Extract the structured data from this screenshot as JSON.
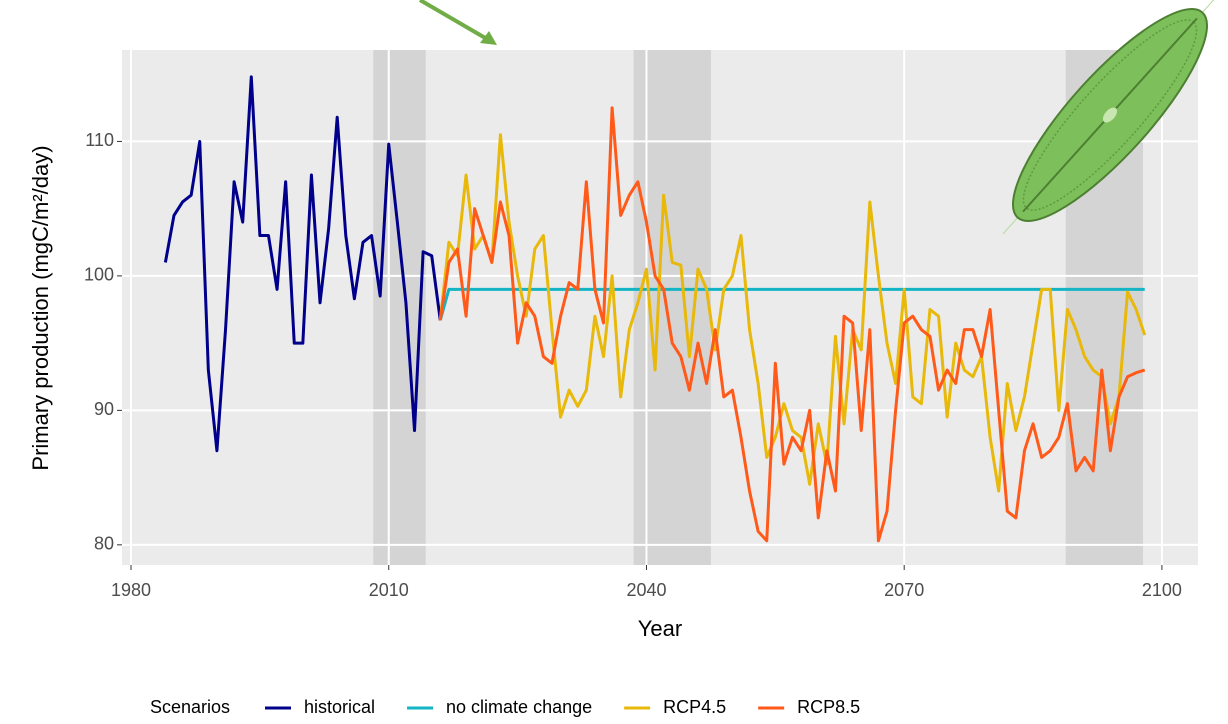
{
  "chart_data": {
    "type": "line",
    "x_label": "Year",
    "y_label": "Primary production (mgC/m²/day)",
    "xlim": [
      1978.95,
      2104.2
    ],
    "ylim": [
      78.5,
      116.8
    ],
    "xticks": [
      1980,
      2010,
      2040,
      2070,
      2100
    ],
    "yticks": [
      80,
      90,
      100,
      110
    ],
    "grid": true,
    "legend_title": "Scenarios",
    "legend_position": "bottom",
    "shaded_periods": [
      [
        2008.2,
        2014.3
      ],
      [
        2038.5,
        2047.5
      ],
      [
        2088.8,
        2097.8
      ]
    ],
    "series": [
      {
        "name": "historical",
        "color": "#00008b",
        "x": [
          1984,
          1985,
          1986,
          1987,
          1988,
          1989,
          1990,
          1991,
          1992,
          1993,
          1994,
          1995,
          1996,
          1997,
          1998,
          1999,
          2000,
          2001,
          2002,
          2003,
          2004,
          2005,
          2006,
          2007,
          2008,
          2009,
          2010,
          2011,
          2012,
          2013,
          2014,
          2015,
          2016
        ],
        "values": [
          101,
          104.5,
          105.5,
          106,
          110,
          93,
          87,
          96,
          107,
          104,
          114.8,
          103,
          103,
          99,
          107,
          95,
          95,
          107.5,
          98,
          103.5,
          111.8,
          103,
          98.3,
          102.5,
          103,
          98.5,
          109.8,
          104,
          98,
          88.5,
          101.8,
          101.5,
          96.7
        ]
      },
      {
        "name": "no climate change",
        "color": "#13b5c4",
        "x": [
          2016,
          2017,
          2098
        ],
        "values": [
          96.7,
          99,
          99
        ]
      },
      {
        "name": "RCP4.5",
        "color": "#e8b80a",
        "x": [
          2016,
          2017,
          2018,
          2019,
          2020,
          2021,
          2022,
          2023,
          2024,
          2025,
          2026,
          2027,
          2028,
          2029,
          2030,
          2031,
          2032,
          2033,
          2034,
          2035,
          2036,
          2037,
          2038,
          2039,
          2040,
          2041,
          2042,
          2043,
          2044,
          2045,
          2046,
          2047,
          2048,
          2049,
          2050,
          2051,
          2052,
          2053,
          2054,
          2055,
          2056,
          2057,
          2058,
          2059,
          2060,
          2061,
          2062,
          2063,
          2064,
          2065,
          2066,
          2067,
          2068,
          2069,
          2070,
          2071,
          2072,
          2073,
          2074,
          2075,
          2076,
          2077,
          2078,
          2079,
          2080,
          2081,
          2082,
          2083,
          2084,
          2085,
          2086,
          2087,
          2088,
          2089,
          2090,
          2091,
          2092,
          2093,
          2094,
          2095,
          2096,
          2097,
          2098
        ],
        "values": [
          96.7,
          102.5,
          101.5,
          107.5,
          102,
          103,
          101,
          110.5,
          104,
          100,
          97,
          102,
          103,
          96,
          89.5,
          91.5,
          90.3,
          91.5,
          97,
          94,
          100,
          91,
          96,
          98,
          100.5,
          93,
          106,
          101,
          100.8,
          94,
          100.5,
          99,
          94.5,
          99,
          100,
          103,
          96,
          92,
          86.5,
          88,
          90.5,
          88.5,
          88,
          84.5,
          89,
          86,
          95.5,
          89,
          96,
          94.5,
          105.5,
          100,
          95,
          92,
          99,
          91,
          90.5,
          97.5,
          97,
          89.5,
          95,
          93,
          92.5,
          94,
          88,
          84,
          92,
          88.5,
          91,
          95,
          99,
          99,
          90,
          97.5,
          96,
          94,
          93,
          92.5,
          89,
          91,
          98.8,
          97.5,
          95.6
        ]
      },
      {
        "name": "RCP8.5",
        "color": "#ff5a1a",
        "x": [
          2016,
          2017,
          2018,
          2019,
          2020,
          2021,
          2022,
          2023,
          2024,
          2025,
          2026,
          2027,
          2028,
          2029,
          2030,
          2031,
          2032,
          2033,
          2034,
          2035,
          2036,
          2037,
          2038,
          2039,
          2040,
          2041,
          2042,
          2043,
          2044,
          2045,
          2046,
          2047,
          2048,
          2049,
          2050,
          2051,
          2052,
          2053,
          2054,
          2055,
          2056,
          2057,
          2058,
          2059,
          2060,
          2061,
          2062,
          2063,
          2064,
          2065,
          2066,
          2067,
          2068,
          2069,
          2070,
          2071,
          2072,
          2073,
          2074,
          2075,
          2076,
          2077,
          2078,
          2079,
          2080,
          2081,
          2082,
          2083,
          2084,
          2085,
          2086,
          2087,
          2088,
          2089,
          2090,
          2091,
          2092,
          2093,
          2094,
          2095,
          2096,
          2097,
          2098
        ],
        "values": [
          96.7,
          101,
          102,
          97,
          105,
          103,
          101,
          105.5,
          103,
          95,
          98,
          97,
          94,
          93.5,
          97,
          99.5,
          99,
          107,
          99,
          96.5,
          112.5,
          104.5,
          106,
          107,
          104,
          100,
          99,
          95,
          94,
          91.5,
          95,
          92,
          96,
          91,
          91.5,
          88,
          84,
          81,
          80.3,
          93.5,
          86,
          88,
          87,
          90,
          82,
          87,
          84,
          97,
          96.5,
          88.5,
          96,
          80.3,
          82.5,
          90,
          96.5,
          97,
          96,
          95.5,
          91.5,
          93,
          92,
          96,
          96,
          94,
          97.5,
          90,
          82.5,
          82,
          87,
          89,
          86.5,
          87,
          88,
          90.5,
          85.5,
          86.5,
          85.5,
          93,
          87,
          91,
          92.5,
          92.8,
          93
        ]
      }
    ]
  }
}
